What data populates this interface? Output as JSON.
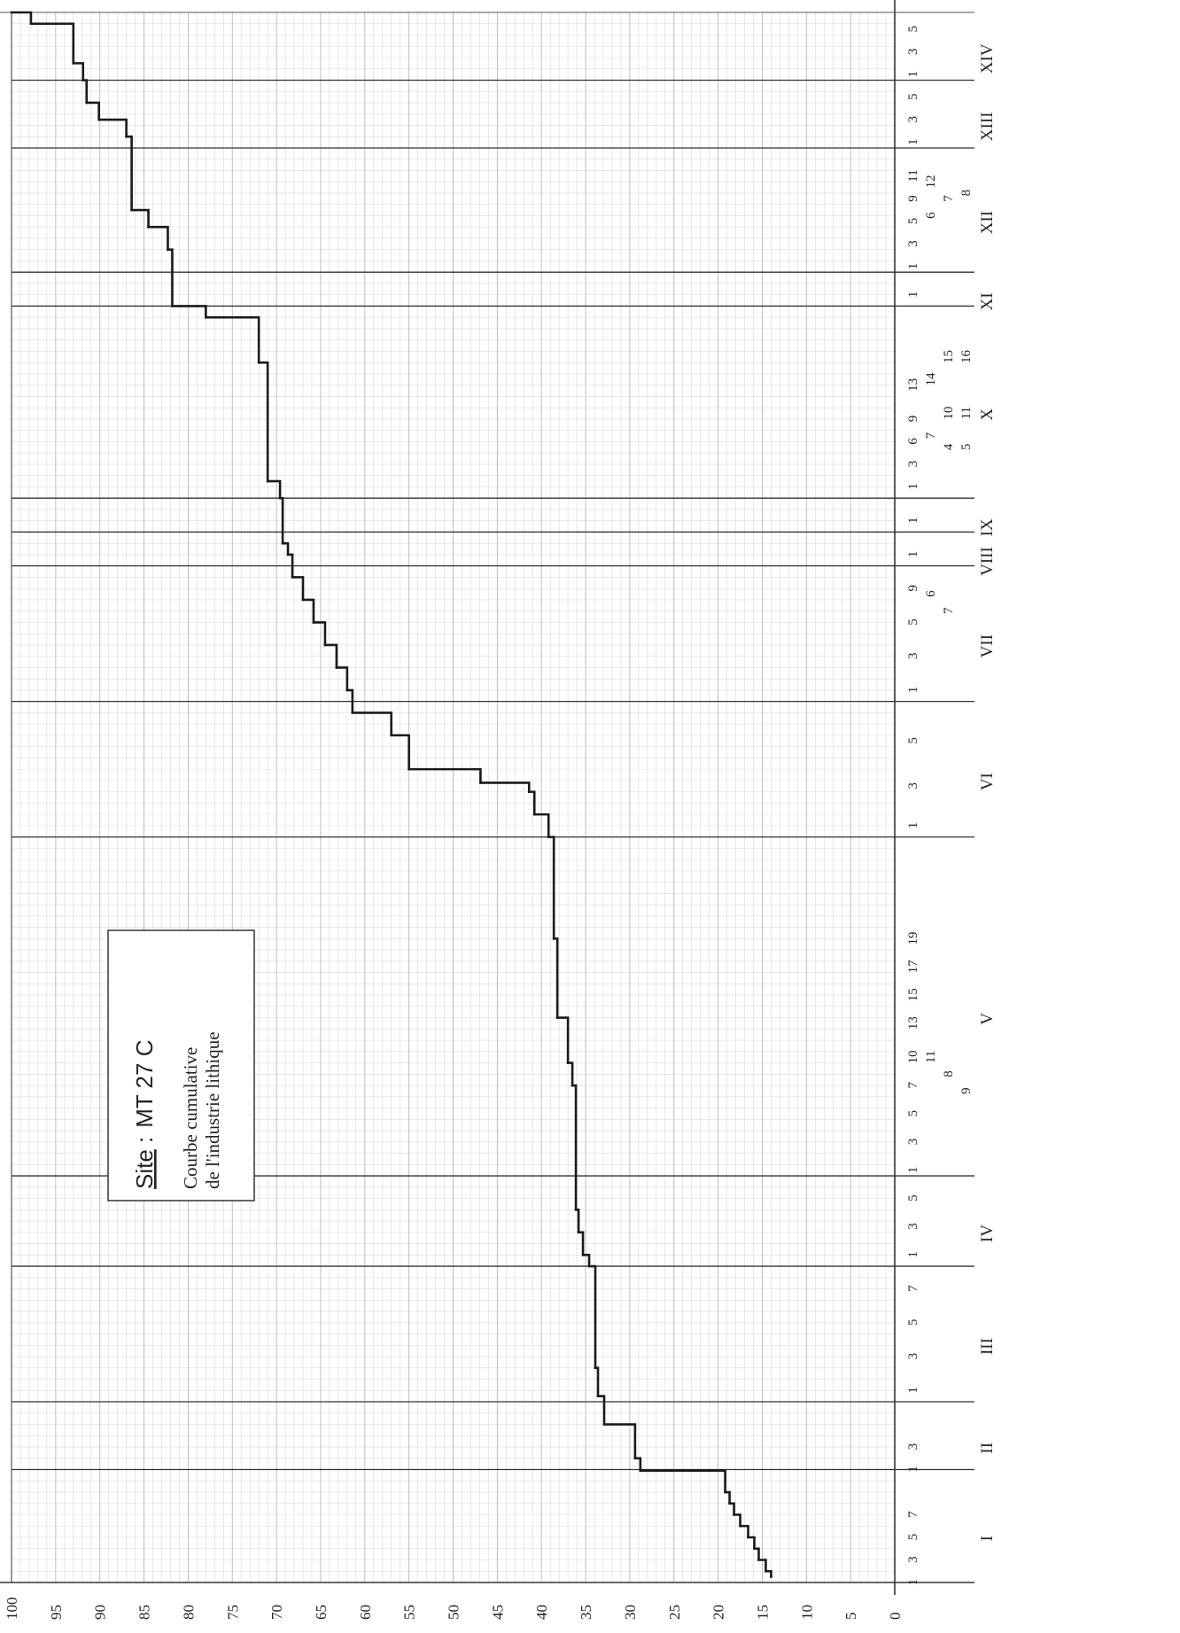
{
  "chart_data": {
    "type": "line",
    "title": "Site : MT 27 C",
    "title_site_label": "Site",
    "title_site_sep": " :",
    "title_site_value": "MT 27 C",
    "subtitle_line1": "Courbe cumulative",
    "subtitle_line2": "de l'industrie lithique",
    "orientation": "rotated-90",
    "ylim": [
      0,
      100
    ],
    "y_ticks": [
      "0",
      "5",
      "10",
      "15",
      "20",
      "25",
      "30",
      "35",
      "40",
      "45",
      "50",
      "55",
      "60",
      "65",
      "70",
      "75",
      "80",
      "85",
      "90",
      "95",
      "100"
    ],
    "grid": true,
    "groups": [
      {
        "label": "I",
        "from": 0,
        "to": 10,
        "sub_ticks": [
          {
            "at": 0.5,
            "label": "1"
          },
          {
            "at": 2.5,
            "label": "3"
          },
          {
            "at": 4.5,
            "label": "5"
          },
          {
            "at": 6.5,
            "label": "7"
          }
        ]
      },
      {
        "label": "II",
        "from": 10,
        "to": 16,
        "sub_ticks": [
          {
            "at": 10.5,
            "label": "1"
          },
          {
            "at": 12.5,
            "label": "3"
          }
        ]
      },
      {
        "label": "III",
        "from": 16,
        "to": 28,
        "sub_ticks": [
          {
            "at": 17.5,
            "label": "1"
          },
          {
            "at": 20.5,
            "label": "3"
          },
          {
            "at": 23.5,
            "label": "5"
          },
          {
            "at": 26.5,
            "label": "7"
          }
        ]
      },
      {
        "label": "IV",
        "from": 28,
        "to": 36,
        "sub_ticks": [
          {
            "at": 29.5,
            "label": "1"
          },
          {
            "at": 32,
            "label": "3"
          },
          {
            "at": 34.5,
            "label": "5"
          }
        ]
      },
      {
        "label": "V",
        "from": 36,
        "to": 66,
        "sub_ticks": [
          {
            "at": 37,
            "label": "1"
          },
          {
            "at": 39.5,
            "label": "3"
          },
          {
            "at": 42,
            "label": "5"
          },
          {
            "at": 44.5,
            "label": "7"
          },
          {
            "at": 47,
            "label": "10"
          },
          {
            "at": 50,
            "label": "13"
          },
          {
            "at": 52.5,
            "label": "15"
          },
          {
            "at": 55,
            "label": "17"
          },
          {
            "at": 57.5,
            "label": "19"
          }
        ],
        "inset_labels": [
          {
            "at": 47,
            "label": "11",
            "row": 1
          },
          {
            "at": 45.5,
            "label": "8",
            "row": 2
          },
          {
            "at": 44,
            "label": "9",
            "row": 3
          }
        ]
      },
      {
        "label": "VI",
        "from": 66,
        "to": 78,
        "sub_ticks": [
          {
            "at": 67.5,
            "label": "1"
          },
          {
            "at": 71,
            "label": "3"
          },
          {
            "at": 75,
            "label": "5"
          }
        ]
      },
      {
        "label": "VII",
        "from": 78,
        "to": 90,
        "sub_ticks": [
          {
            "at": 79.5,
            "label": "1"
          },
          {
            "at": 82.5,
            "label": "3"
          },
          {
            "at": 85.5,
            "label": "5"
          },
          {
            "at": 88.5,
            "label": "9"
          }
        ],
        "inset_labels": [
          {
            "at": 88,
            "label": "6",
            "row": 1
          },
          {
            "at": 86.5,
            "label": "7",
            "row": 2
          }
        ]
      },
      {
        "label": "VIII",
        "from": 90,
        "to": 93,
        "sub_ticks": [
          {
            "at": 91.5,
            "label": "1"
          }
        ]
      },
      {
        "label": "IX",
        "from": 93,
        "to": 96,
        "sub_ticks": [
          {
            "at": 94.5,
            "label": "1"
          }
        ]
      },
      {
        "label": "X",
        "from": 96,
        "to": 113,
        "sub_ticks": [
          {
            "at": 97.5,
            "label": "1"
          },
          {
            "at": 99.5,
            "label": "3"
          },
          {
            "at": 101.5,
            "label": "6"
          },
          {
            "at": 103.5,
            "label": "9"
          },
          {
            "at": 106.5,
            "label": "13"
          }
        ],
        "inset_labels": [
          {
            "at": 102,
            "label": "7",
            "row": 1
          },
          {
            "at": 107,
            "label": "14",
            "row": 1
          },
          {
            "at": 101,
            "label": "4",
            "row": 2
          },
          {
            "at": 104,
            "label": "10",
            "row": 2
          },
          {
            "at": 109,
            "label": "15",
            "row": 2
          },
          {
            "at": 101,
            "label": "5",
            "row": 3
          },
          {
            "at": 104,
            "label": "11",
            "row": 3
          },
          {
            "at": 109,
            "label": "16",
            "row": 3
          }
        ]
      },
      {
        "label": "XI",
        "from": 113,
        "to": 116,
        "sub_ticks": [
          {
            "at": 114.5,
            "label": "1"
          }
        ]
      },
      {
        "label": "XII",
        "from": 116,
        "to": 127,
        "sub_ticks": [
          {
            "at": 117,
            "label": "1"
          },
          {
            "at": 119,
            "label": "3"
          },
          {
            "at": 121,
            "label": "5"
          },
          {
            "at": 123,
            "label": "9"
          },
          {
            "at": 125,
            "label": "11"
          }
        ],
        "inset_labels": [
          {
            "at": 121.5,
            "label": "6",
            "row": 1
          },
          {
            "at": 123,
            "label": "7",
            "row": 2
          },
          {
            "at": 124.5,
            "label": "12",
            "row": 1
          },
          {
            "at": 123.5,
            "label": "8",
            "row": 3
          }
        ]
      },
      {
        "label": "XIII",
        "from": 127,
        "to": 133,
        "sub_ticks": [
          {
            "at": 128,
            "label": "1"
          },
          {
            "at": 130,
            "label": "3"
          },
          {
            "at": 132,
            "label": "5"
          }
        ]
      },
      {
        "label": "XIV",
        "from": 133,
        "to": 139,
        "sub_ticks": [
          {
            "at": 134,
            "label": "1"
          },
          {
            "at": 136,
            "label": "3"
          },
          {
            "at": 138,
            "label": "5"
          }
        ]
      }
    ],
    "x_total": 139,
    "series": [
      {
        "values": [
          [
            0.5,
            14.0
          ],
          [
            1.0,
            14.6
          ],
          [
            2.0,
            15.4
          ],
          [
            3.0,
            15.9
          ],
          [
            4.0,
            16.6
          ],
          [
            5.0,
            17.5
          ],
          [
            6.0,
            18.2
          ],
          [
            7.0,
            18.7
          ],
          [
            8.0,
            19.2
          ],
          [
            9.9,
            28.8
          ],
          [
            11.0,
            29.4
          ],
          [
            14.0,
            32.9
          ],
          [
            16.5,
            33.6
          ],
          [
            19.0,
            33.9
          ],
          [
            28.0,
            34.6
          ],
          [
            29.0,
            35.3
          ],
          [
            31.0,
            35.8
          ],
          [
            33.0,
            36.1
          ],
          [
            44.0,
            36.5
          ],
          [
            46.0,
            37.0
          ],
          [
            50.0,
            38.2
          ],
          [
            57.0,
            38.6
          ],
          [
            66.0,
            39.2
          ],
          [
            68.0,
            40.8
          ],
          [
            70.0,
            41.4
          ],
          [
            70.8,
            46.9
          ],
          [
            72.0,
            55.0
          ],
          [
            75.0,
            57.0
          ],
          [
            77.0,
            61.4
          ],
          [
            79.0,
            62.0
          ],
          [
            81.0,
            63.2
          ],
          [
            83.0,
            64.5
          ],
          [
            85.0,
            65.8
          ],
          [
            87.0,
            67.0
          ],
          [
            89.0,
            68.2
          ],
          [
            91.0,
            68.7
          ],
          [
            92.0,
            69.3
          ],
          [
            96.0,
            69.6
          ],
          [
            97.5,
            71.0
          ],
          [
            108.0,
            72.0
          ],
          [
            112.0,
            78.0
          ],
          [
            113.0,
            81.8
          ],
          [
            118.0,
            82.3
          ],
          [
            120.0,
            84.5
          ],
          [
            121.5,
            86.4
          ],
          [
            128.0,
            87.0
          ],
          [
            129.5,
            90.1
          ],
          [
            131.0,
            91.5
          ],
          [
            133.0,
            91.9
          ],
          [
            134.5,
            93.0
          ],
          [
            138.0,
            97.8
          ],
          [
            139.0,
            100.0
          ]
        ]
      }
    ]
  }
}
